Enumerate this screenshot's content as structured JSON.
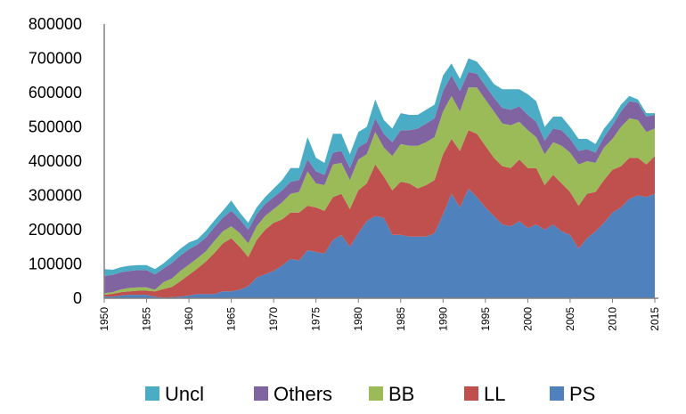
{
  "chart_data": {
    "type": "area",
    "stacked": true,
    "title": "",
    "xlabel": "",
    "ylabel": "",
    "ylim": [
      0,
      800000
    ],
    "yticks": [
      0,
      100000,
      200000,
      300000,
      400000,
      500000,
      600000,
      700000,
      800000
    ],
    "yticks_labels": [
      "0",
      "100000",
      "200000",
      "300000",
      "400000",
      "500000",
      "600000",
      "700000",
      "800000"
    ],
    "xlim": [
      1950,
      2015
    ],
    "xticks": [
      1950,
      1955,
      1960,
      1965,
      1970,
      1975,
      1980,
      1985,
      1990,
      1995,
      2000,
      2005,
      2010,
      2015
    ],
    "xticks_labels": [
      "1950",
      "1955",
      "1960",
      "1965",
      "1970",
      "1975",
      "1980",
      "1985",
      "1990",
      "1995",
      "2000",
      "2005",
      "2010",
      "2015"
    ],
    "grid": false,
    "legend_position": "bottom",
    "x": [
      1950,
      1951,
      1952,
      1953,
      1954,
      1955,
      1956,
      1957,
      1958,
      1959,
      1960,
      1961,
      1962,
      1963,
      1964,
      1965,
      1966,
      1967,
      1968,
      1969,
      1970,
      1971,
      1972,
      1973,
      1974,
      1975,
      1976,
      1977,
      1978,
      1979,
      1980,
      1981,
      1982,
      1983,
      1984,
      1985,
      1986,
      1987,
      1988,
      1989,
      1990,
      1991,
      1992,
      1993,
      1994,
      1995,
      1996,
      1997,
      1998,
      1999,
      2000,
      2001,
      2002,
      2003,
      2004,
      2005,
      2006,
      2007,
      2008,
      2009,
      2010,
      2011,
      2012,
      2013,
      2014,
      2015
    ],
    "series": [
      {
        "name": "PS",
        "color": "#4F81BD",
        "values": [
          5000,
          5000,
          8000,
          10000,
          10000,
          10000,
          5000,
          2000,
          3000,
          5000,
          8000,
          12000,
          12000,
          12000,
          20000,
          20000,
          25000,
          35000,
          60000,
          70000,
          80000,
          95000,
          115000,
          110000,
          140000,
          135000,
          130000,
          170000,
          185000,
          150000,
          190000,
          225000,
          240000,
          235000,
          185000,
          185000,
          180000,
          180000,
          180000,
          190000,
          245000,
          305000,
          265000,
          320000,
          295000,
          265000,
          240000,
          215000,
          210000,
          225000,
          205000,
          215000,
          200000,
          215000,
          195000,
          185000,
          145000,
          175000,
          195000,
          220000,
          250000,
          265000,
          290000,
          300000,
          295000,
          305000
        ]
      },
      {
        "name": "LL",
        "color": "#C0504D",
        "values": [
          5000,
          8000,
          10000,
          10000,
          12000,
          12000,
          15000,
          25000,
          30000,
          45000,
          60000,
          75000,
          95000,
          120000,
          140000,
          155000,
          125000,
          85000,
          110000,
          130000,
          140000,
          135000,
          135000,
          140000,
          130000,
          130000,
          125000,
          125000,
          120000,
          110000,
          125000,
          110000,
          150000,
          120000,
          130000,
          155000,
          155000,
          140000,
          150000,
          155000,
          175000,
          160000,
          165000,
          170000,
          185000,
          180000,
          170000,
          170000,
          170000,
          180000,
          175000,
          165000,
          130000,
          145000,
          140000,
          125000,
          125000,
          130000,
          115000,
          125000,
          125000,
          120000,
          120000,
          110000,
          95000,
          110000
        ]
      },
      {
        "name": "BB",
        "color": "#9BBB59",
        "values": [
          5000,
          5000,
          8000,
          10000,
          10000,
          10000,
          5000,
          20000,
          25000,
          30000,
          30000,
          30000,
          30000,
          35000,
          35000,
          35000,
          40000,
          40000,
          40000,
          40000,
          40000,
          50000,
          55000,
          60000,
          100000,
          70000,
          75000,
          95000,
          90000,
          85000,
          90000,
          85000,
          95000,
          85000,
          100000,
          110000,
          110000,
          125000,
          125000,
          125000,
          125000,
          125000,
          115000,
          125000,
          135000,
          135000,
          135000,
          125000,
          125000,
          110000,
          110000,
          90000,
          90000,
          95000,
          110000,
          115000,
          120000,
          95000,
          85000,
          95000,
          90000,
          115000,
          115000,
          110000,
          95000,
          80000
        ]
      },
      {
        "name": "Others",
        "color": "#8064A2",
        "values": [
          50000,
          50000,
          50000,
          50000,
          50000,
          50000,
          45000,
          40000,
          45000,
          45000,
          45000,
          40000,
          40000,
          40000,
          40000,
          45000,
          40000,
          40000,
          35000,
          35000,
          35000,
          35000,
          35000,
          35000,
          35000,
          35000,
          30000,
          35000,
          35000,
          35000,
          35000,
          35000,
          40000,
          40000,
          40000,
          40000,
          45000,
          50000,
          55000,
          55000,
          60000,
          60000,
          60000,
          45000,
          40000,
          40000,
          40000,
          45000,
          45000,
          45000,
          45000,
          45000,
          40000,
          40000,
          45000,
          40000,
          40000,
          35000,
          30000,
          30000,
          40000,
          45000,
          50000,
          50000,
          45000,
          40000
        ]
      },
      {
        "name": "Uncl",
        "color": "#4BACC6",
        "values": [
          20000,
          15000,
          15000,
          15000,
          15000,
          15000,
          15000,
          15000,
          20000,
          20000,
          20000,
          15000,
          20000,
          20000,
          20000,
          30000,
          20000,
          20000,
          20000,
          20000,
          25000,
          30000,
          40000,
          35000,
          65000,
          40000,
          35000,
          55000,
          50000,
          40000,
          45000,
          45000,
          55000,
          40000,
          40000,
          50000,
          45000,
          40000,
          40000,
          40000,
          45000,
          35000,
          35000,
          40000,
          35000,
          40000,
          40000,
          55000,
          60000,
          50000,
          60000,
          60000,
          40000,
          35000,
          40000,
          35000,
          35000,
          30000,
          25000,
          25000,
          20000,
          20000,
          15000,
          10000,
          10000,
          5000
        ]
      }
    ]
  }
}
